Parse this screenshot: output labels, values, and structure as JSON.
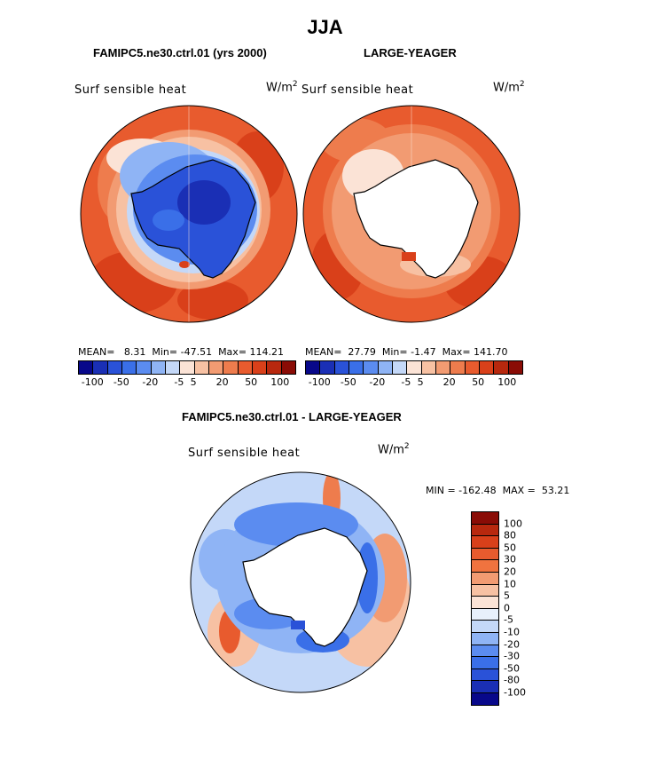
{
  "figure": {
    "title": "JJA"
  },
  "colors": {
    "seq": [
      "#08088a",
      "#1a2fb5",
      "#2a52d8",
      "#3a6fe8",
      "#5b8cf0",
      "#8fb4f5",
      "#c4d8f8",
      "#fbe3d6",
      "#f7c1a3",
      "#f29b72",
      "#ee7c4d",
      "#e85b2e",
      "#d9401a",
      "#b8280e",
      "#8a0c06"
    ],
    "diff": [
      "#8a0c06",
      "#b8280e",
      "#d9401a",
      "#e85b2e",
      "#f0733f",
      "#f29b72",
      "#f7c1a3",
      "#fbe3d6",
      "#e8f0fb",
      "#c4d8f8",
      "#8fb4f5",
      "#5b8cf0",
      "#3a6fe8",
      "#2a52d8",
      "#1a2fb5",
      "#08088a"
    ]
  },
  "chart_data": [
    {
      "type": "heatmap",
      "title": "FAMIPC5.ne30.ctrl.01 (yrs 2000)",
      "variable": "Surf sensible heat",
      "units": "W/m2",
      "stats": {
        "mean": "8.31",
        "min": "-47.51",
        "max": "114.21"
      },
      "stats_text": "MEAN=   8.31  Min= -47.51  Max= 114.21",
      "colorbar_ticks": [
        "-100",
        "-50",
        "-20",
        "-5",
        "5",
        "20",
        "50",
        "100"
      ],
      "colorbar_tick_values": [
        -100,
        -50,
        -20,
        -5,
        5,
        20,
        50,
        100
      ]
    },
    {
      "type": "heatmap",
      "title": "LARGE-YEAGER",
      "variable": "Surf sensible heat",
      "units": "W/m2",
      "stats": {
        "mean": "27.79",
        "min": "-1.47",
        "max": "141.70"
      },
      "stats_text": "MEAN=  27.79  Min= -1.47  Max= 141.70",
      "colorbar_ticks": [
        "-100",
        "-50",
        "-20",
        "-5",
        "5",
        "20",
        "50",
        "100"
      ],
      "colorbar_tick_values": [
        -100,
        -50,
        -20,
        -5,
        5,
        20,
        50,
        100
      ]
    },
    {
      "type": "heatmap",
      "title": "FAMIPC5.ne30.ctrl.01 - LARGE-YEAGER",
      "variable": "Surf sensible heat",
      "units": "W/m2",
      "stats": {
        "min": "-162.48",
        "max": "53.21"
      },
      "stats_text": "MIN = -162.48  MAX =  53.21",
      "colorbar_levels": [
        "100",
        "80",
        "50",
        "30",
        "20",
        "10",
        "5",
        "0",
        "-5",
        "-10",
        "-20",
        "-30",
        "-50",
        "-80",
        "-100"
      ],
      "colorbar_level_values": [
        100,
        80,
        50,
        30,
        20,
        10,
        5,
        0,
        -5,
        -10,
        -20,
        -30,
        -50,
        -80,
        -100
      ]
    }
  ],
  "units_label": {
    "base": "W/m",
    "exp": "2"
  }
}
